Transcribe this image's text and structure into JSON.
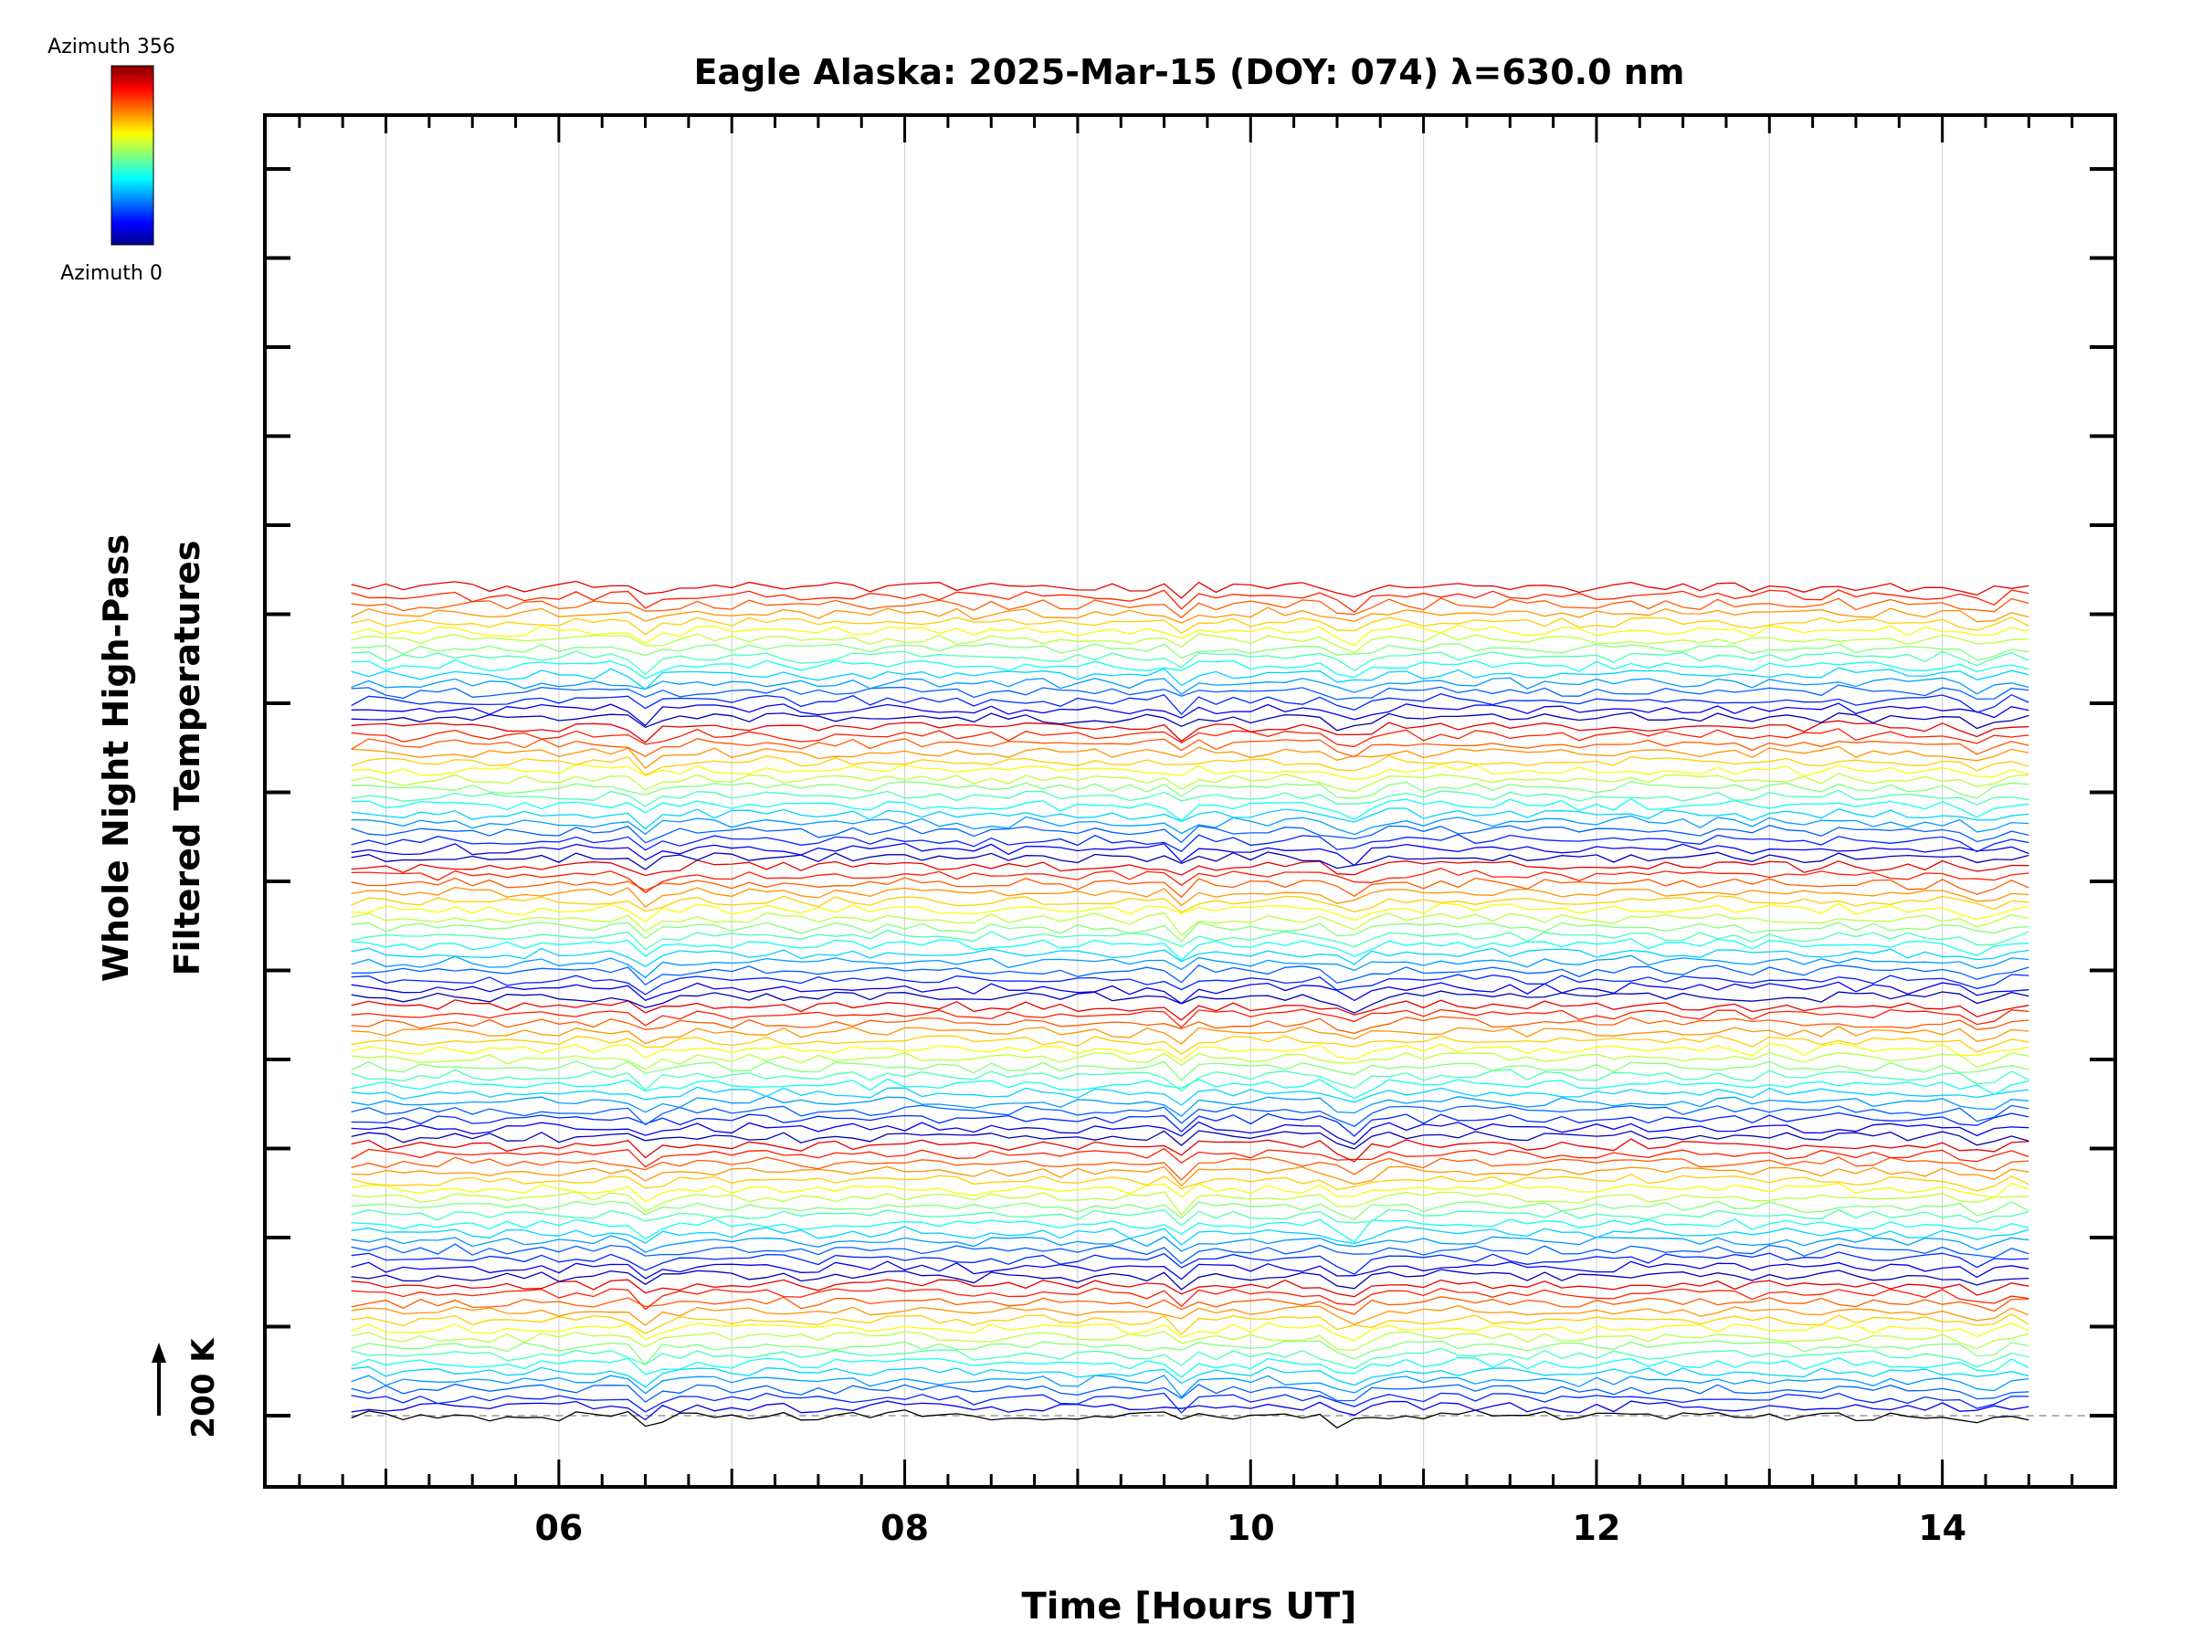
{
  "chart_data": {
    "type": "line",
    "title": "Eagle Alaska: 2025-Mar-15 (DOY: 074) λ=630.0 nm",
    "xlabel": "Time [Hours UT]",
    "ylabel_line1": "Whole Night High-Pass",
    "ylabel_line2": "Filtered Temperatures",
    "scale_label": "200 K",
    "xlim": [
      4.3,
      15.0
    ],
    "x_ticks": [
      6,
      8,
      10,
      12,
      14
    ],
    "x_tick_labels": [
      "06",
      "08",
      "10",
      "12",
      "14"
    ],
    "x_range_data": [
      4.8,
      14.5
    ],
    "sample_interval_hours": 0.1,
    "trace_count": 96,
    "trace_offset_K": 12.5,
    "baseline_offset_K": 0,
    "colorbar": {
      "top_label": "Azimuth 356",
      "bottom_label": "Azimuth 0",
      "azimuth_min": 0,
      "azimuth_max": 356
    },
    "common_event_times_hours": [
      6.5,
      9.6,
      10.55,
      10.65,
      14.25
    ],
    "colors": {
      "axis": "#000000",
      "grid": "#cccccc",
      "baseline": "#999999"
    }
  }
}
